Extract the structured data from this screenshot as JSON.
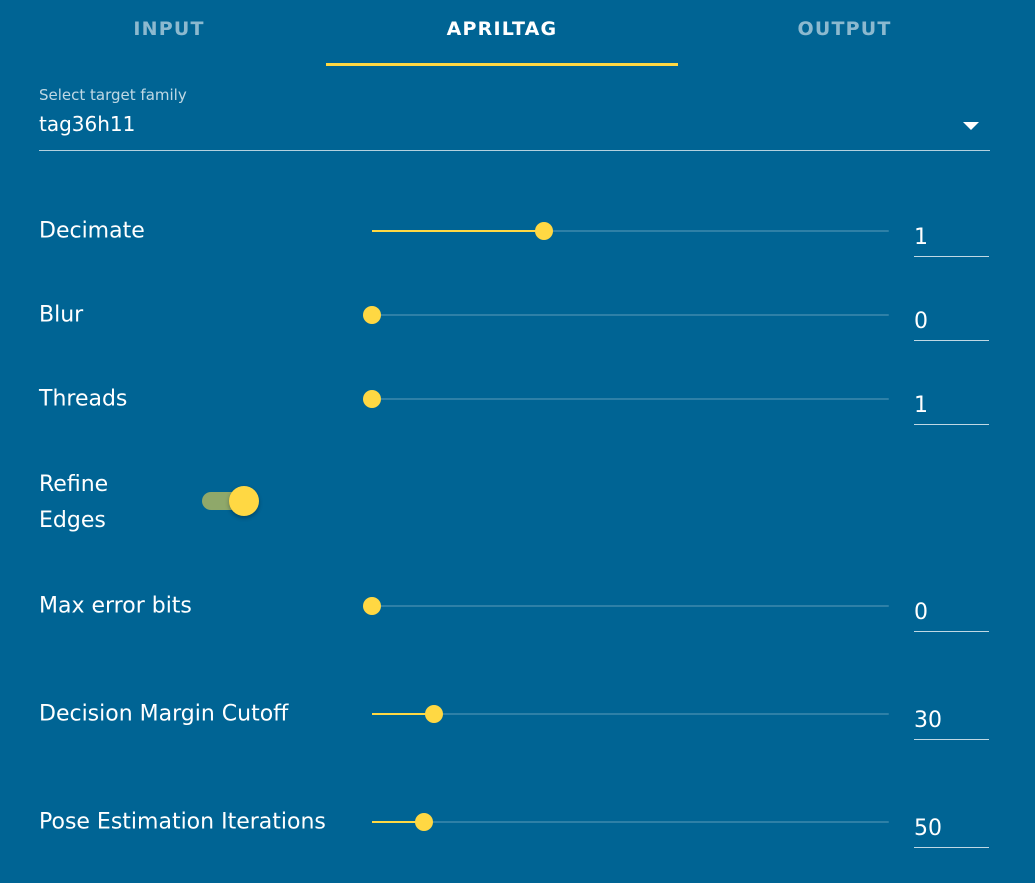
{
  "tabs": [
    {
      "label": "INPUT",
      "active": false
    },
    {
      "label": "APRILTAG",
      "active": true
    },
    {
      "label": "OUTPUT",
      "active": false
    }
  ],
  "target_family": {
    "label": "Select target family",
    "value": "tag36h11"
  },
  "sliders": {
    "decimate": {
      "label": "Decimate",
      "value": "1",
      "fraction": 0.333
    },
    "blur": {
      "label": "Blur",
      "value": "0",
      "fraction": 0.0
    },
    "threads": {
      "label": "Threads",
      "value": "1",
      "fraction": 0.0
    },
    "max_error_bits": {
      "label": "Max error bits",
      "value": "0",
      "fraction": 0.0
    },
    "decision_margin": {
      "label": "Decision Margin Cutoff",
      "value": "30",
      "fraction": 0.12
    },
    "pose_iterations": {
      "label": "Pose Estimation Iterations",
      "value": "50",
      "fraction": 0.1
    }
  },
  "refine_edges": {
    "label_line1": "Refine",
    "label_line2": "Edges",
    "on": true
  },
  "colors": {
    "background": "#006494",
    "accent": "#ffd843",
    "toggle_track": "#8fa86a"
  }
}
